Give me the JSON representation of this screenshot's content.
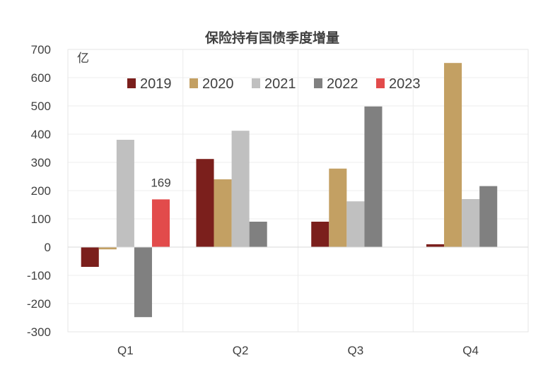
{
  "chart_data": {
    "type": "bar",
    "title": "保险持有国债季度增量",
    "unit_label": "亿",
    "xlabel": "",
    "ylabel": "",
    "ylim": [
      -300,
      700
    ],
    "y_ticks": [
      700,
      600,
      500,
      400,
      300,
      200,
      100,
      0,
      -100,
      -200,
      -300
    ],
    "y_tick_labels": [
      "700",
      "600",
      "500",
      "400",
      "300",
      "200",
      "100",
      "0",
      "-100",
      "-200",
      "-300"
    ],
    "categories": [
      "Q1",
      "Q2",
      "Q3",
      "Q4"
    ],
    "series": [
      {
        "name": "2019",
        "color": "#7b1f1c",
        "values": [
          -70,
          312,
          90,
          10
        ]
      },
      {
        "name": "2020",
        "color": "#c3a063",
        "values": [
          -8,
          240,
          278,
          652
        ]
      },
      {
        "name": "2021",
        "color": "#c0c0c0",
        "values": [
          380,
          412,
          162,
          170
        ]
      },
      {
        "name": "2022",
        "color": "#808080",
        "values": [
          -248,
          90,
          498,
          216
        ]
      },
      {
        "name": "2023",
        "color": "#e24b4b",
        "values": [
          169,
          null,
          null,
          null
        ]
      }
    ],
    "data_labels": [
      {
        "series": "2023",
        "category": "Q1",
        "text": "169"
      }
    ],
    "legend_position": "top-center",
    "grid": true
  }
}
